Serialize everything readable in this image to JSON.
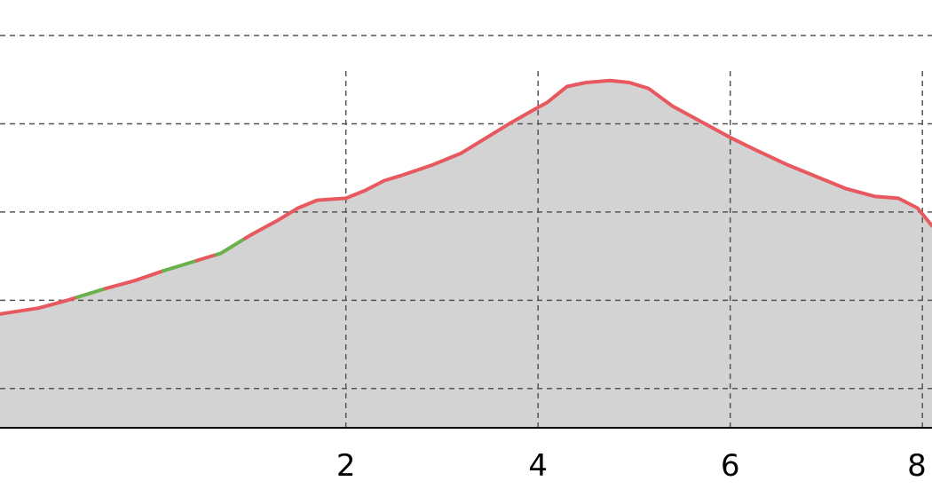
{
  "chart_data": {
    "type": "area",
    "title": "",
    "xlabel": "",
    "ylabel": "",
    "xlim": [
      -1.6,
      8.1
    ],
    "ylim": [
      0,
      1
    ],
    "x_ticks": [
      {
        "value": 2,
        "label": "2"
      },
      {
        "value": 4,
        "label": "4"
      },
      {
        "value": 6,
        "label": "6"
      },
      {
        "value": 8,
        "label": "8"
      }
    ],
    "x_gridlines": [
      2,
      4,
      6,
      8
    ],
    "y_gridlines": [
      0.1,
      0.325,
      0.55,
      0.775,
      1.0
    ],
    "grid": true,
    "series": [
      {
        "points": [
          [
            -1.6,
            0.29
          ],
          [
            -1.2,
            0.305
          ],
          [
            -0.9,
            0.325
          ],
          [
            -0.5,
            0.355
          ],
          [
            -0.2,
            0.375
          ],
          [
            0.1,
            0.4
          ],
          [
            0.5,
            0.43
          ],
          [
            0.7,
            0.445
          ],
          [
            1.0,
            0.49
          ],
          [
            1.3,
            0.53
          ],
          [
            1.5,
            0.56
          ],
          [
            1.7,
            0.58
          ],
          [
            2.0,
            0.585
          ],
          [
            2.2,
            0.605
          ],
          [
            2.4,
            0.63
          ],
          [
            2.6,
            0.645
          ],
          [
            2.9,
            0.67
          ],
          [
            3.2,
            0.7
          ],
          [
            3.5,
            0.745
          ],
          [
            3.7,
            0.775
          ],
          [
            3.95,
            0.81
          ],
          [
            4.1,
            0.83
          ],
          [
            4.3,
            0.87
          ],
          [
            4.5,
            0.88
          ],
          [
            4.75,
            0.885
          ],
          [
            4.95,
            0.88
          ],
          [
            5.15,
            0.865
          ],
          [
            5.4,
            0.82
          ],
          [
            5.7,
            0.78
          ],
          [
            6.0,
            0.74
          ],
          [
            6.25,
            0.71
          ],
          [
            6.6,
            0.67
          ],
          [
            6.9,
            0.64
          ],
          [
            7.2,
            0.61
          ],
          [
            7.5,
            0.59
          ],
          [
            7.75,
            0.585
          ],
          [
            7.95,
            0.56
          ],
          [
            8.1,
            0.515
          ]
        ]
      }
    ],
    "segments": [
      {
        "x_start": -1.6,
        "x_end": -0.8,
        "color": "#e8585f"
      },
      {
        "x_start": -0.8,
        "x_end": -0.5,
        "color": "#6ab04c"
      },
      {
        "x_start": -0.5,
        "x_end": 0.1,
        "color": "#e8585f"
      },
      {
        "x_start": 0.1,
        "x_end": 0.45,
        "color": "#6ab04c"
      },
      {
        "x_start": 0.45,
        "x_end": 0.65,
        "color": "#e8585f"
      },
      {
        "x_start": 0.65,
        "x_end": 0.95,
        "color": "#6ab04c"
      },
      {
        "x_start": 0.95,
        "x_end": 8.1,
        "color": "#e8585f"
      }
    ],
    "fill_color": "#d3d3d3",
    "grid_color": "#555555",
    "axis_color": "#000000"
  }
}
